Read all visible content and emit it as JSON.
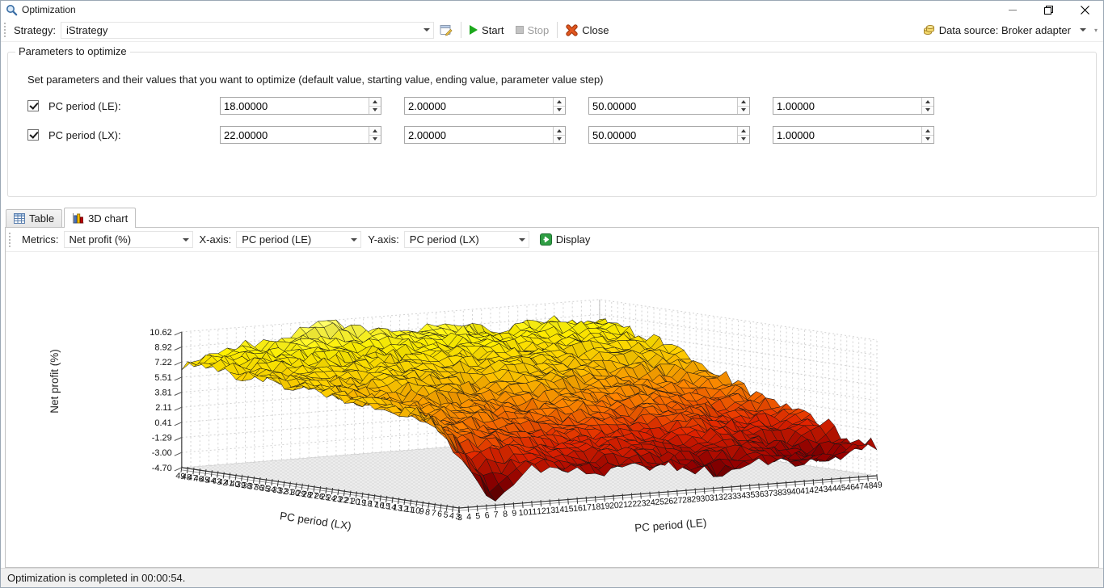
{
  "window": {
    "title": "Optimization"
  },
  "toolbar": {
    "strategy_label": "Strategy:",
    "strategy_value": "iStrategy",
    "start": "Start",
    "stop": "Stop",
    "close": "Close",
    "datasource": "Data source: Broker adapter"
  },
  "parameters": {
    "group_title": "Parameters to optimize",
    "instruction": "Set parameters and their values that you want to optimize (default value, starting value, ending value, parameter value step)",
    "rows": [
      {
        "checked": true,
        "label": "PC period (LE):",
        "values": [
          "18.00000",
          "2.00000",
          "50.00000",
          "1.00000"
        ]
      },
      {
        "checked": true,
        "label": "PC period (LX):",
        "values": [
          "22.00000",
          "2.00000",
          "50.00000",
          "1.00000"
        ]
      }
    ]
  },
  "tabs": {
    "table": "Table",
    "chart3d": "3D chart"
  },
  "chart_toolbar": {
    "metrics_label": "Metrics:",
    "metrics_value": "Net profit (%)",
    "x_label": "X-axis:",
    "x_value": "PC period (LE)",
    "y_label": "Y-axis:",
    "y_value": "PC period (LX)",
    "display": "Display"
  },
  "status": "Optimization is completed in 00:00:54.",
  "chart_data": {
    "type": "surface",
    "xlabel": "PC period (LE)",
    "ylabel": "PC period (LX)",
    "zlabel": "Net profit (%)",
    "x_range": [
      3,
      49
    ],
    "y_range": [
      3,
      49
    ],
    "z_ticks": [
      10.62,
      8.92,
      7.22,
      5.51,
      3.81,
      2.11,
      0.41,
      -1.29,
      -3.0,
      -4.7
    ],
    "zlim": [
      -4.7,
      10.62
    ],
    "grid": "dashed gray on back walls",
    "colormap": [
      "#330000",
      "#990000",
      "#e32400",
      "#ff7d00",
      "#ffc400",
      "#fff200",
      "#ffff70"
    ],
    "surface_estimate": {
      "note": "estimated net profit (%) control grid read from the 3D surface; rows = lx_points, cols = le_points",
      "le_points": [
        3,
        7,
        11,
        15,
        19,
        24,
        28,
        32,
        36,
        40,
        45,
        49
      ],
      "lx_points": [
        3,
        7,
        11,
        15,
        19,
        24,
        28,
        32,
        36,
        40,
        45,
        49
      ],
      "z_grid": [
        [
          1.2,
          -4.7,
          -0.5,
          -1.5,
          -2.0,
          -1.5,
          -2.2,
          -3.2,
          -1.8,
          -2.6,
          -2.0,
          -1.2
        ],
        [
          4.8,
          0.5,
          0.8,
          0.0,
          -0.8,
          -0.3,
          -1.0,
          -1.8,
          -0.8,
          -2.0,
          -2.6,
          -1.2
        ],
        [
          5.5,
          3.2,
          2.0,
          1.0,
          0.3,
          0.6,
          0.0,
          -0.8,
          0.3,
          -0.8,
          -1.8,
          0.3
        ],
        [
          5.2,
          4.0,
          3.0,
          2.4,
          1.4,
          1.1,
          0.9,
          0.3,
          1.4,
          0.6,
          0.0,
          0.9
        ],
        [
          6.0,
          4.6,
          4.0,
          3.4,
          2.4,
          2.0,
          2.9,
          1.4,
          2.4,
          1.4,
          0.9,
          1.9
        ],
        [
          5.6,
          5.1,
          4.5,
          4.5,
          3.4,
          3.0,
          3.9,
          2.9,
          3.4,
          2.4,
          1.9,
          2.9
        ],
        [
          6.5,
          5.6,
          5.1,
          5.6,
          4.5,
          4.0,
          5.0,
          4.5,
          4.0,
          3.4,
          3.0,
          4.0
        ],
        [
          6.1,
          6.5,
          5.6,
          6.5,
          5.6,
          5.1,
          6.0,
          5.6,
          5.1,
          4.5,
          4.5,
          5.1
        ],
        [
          7.0,
          6.1,
          6.5,
          7.0,
          6.5,
          6.1,
          6.5,
          6.5,
          6.1,
          5.6,
          6.0,
          6.0
        ],
        [
          6.6,
          7.0,
          7.5,
          7.5,
          7.0,
          7.5,
          7.0,
          7.5,
          7.0,
          6.6,
          7.0,
          7.0
        ],
        [
          7.5,
          7.6,
          8.0,
          8.5,
          8.0,
          8.5,
          8.0,
          8.5,
          7.6,
          7.5,
          8.0,
          7.6
        ],
        [
          7.0,
          8.0,
          8.6,
          9.1,
          10.6,
          9.1,
          8.6,
          9.1,
          8.1,
          8.6,
          8.6,
          8.1
        ]
      ]
    }
  }
}
